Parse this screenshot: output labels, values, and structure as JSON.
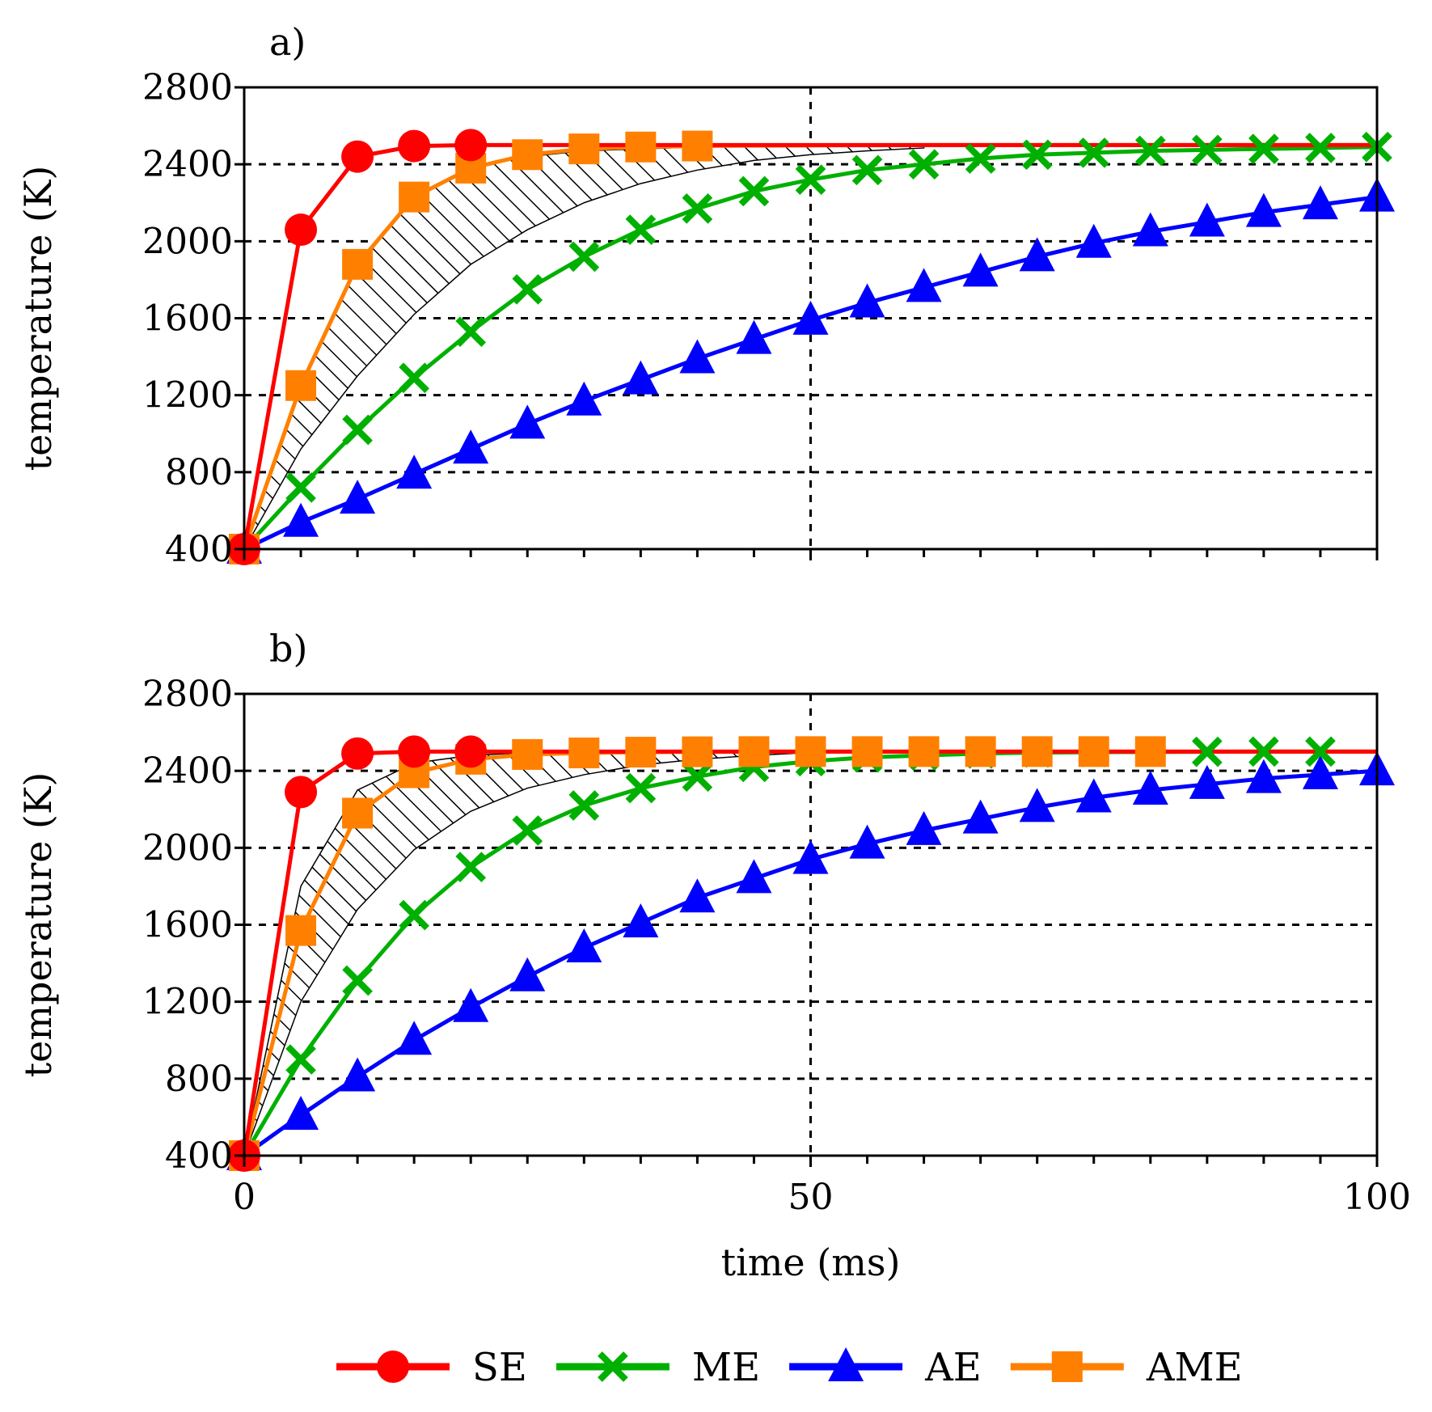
{
  "legend": [
    {
      "name": "SE",
      "color": "#ff0000",
      "marker": "circle"
    },
    {
      "name": "ME",
      "color": "#00b000",
      "marker": "cross"
    },
    {
      "name": "AE",
      "color": "#0000ff",
      "marker": "triangle"
    },
    {
      "name": "AME",
      "color": "#ff8000",
      "marker": "square"
    }
  ],
  "chart_data": [
    {
      "type": "line",
      "panel_label": "a)",
      "xlabel": "",
      "ylabel": "temperature (K)",
      "xlim": [
        0,
        100
      ],
      "ylim": [
        400,
        2800
      ],
      "yticks": [
        400,
        800,
        1200,
        1600,
        2000,
        2400,
        2800
      ],
      "xticks": [
        0,
        50,
        100
      ],
      "grid": "dashed horizontal at y ticks, vertical at x = 50",
      "band": {
        "x": [
          0,
          5,
          10,
          15,
          20,
          25,
          30,
          35,
          40,
          45,
          50,
          55,
          60
        ],
        "upper": [
          400,
          1250,
          1880,
          2230,
          2380,
          2440,
          2470,
          2480,
          2490,
          2492,
          2495,
          2497,
          2499
        ],
        "lower": [
          400,
          920,
          1300,
          1620,
          1880,
          2060,
          2200,
          2300,
          2370,
          2420,
          2450,
          2470,
          2485
        ]
      },
      "series": [
        {
          "name": "SE",
          "x": [
            0,
            5,
            10,
            15,
            20,
            25,
            30,
            35,
            40,
            45,
            50,
            55,
            60,
            65,
            70,
            75,
            80,
            85,
            90,
            95,
            100
          ],
          "y": [
            400,
            2060,
            2440,
            2495,
            2500,
            2500,
            2500,
            2500,
            2500,
            2500,
            2500,
            2500,
            2500,
            2500,
            2500,
            2500,
            2500,
            2500,
            2500,
            2500,
            2500
          ],
          "marker_x": [
            0,
            5,
            10,
            15,
            20
          ]
        },
        {
          "name": "ME",
          "x": [
            0,
            5,
            10,
            15,
            20,
            25,
            30,
            35,
            40,
            45,
            50,
            55,
            60,
            65,
            70,
            75,
            80,
            85,
            90,
            95,
            100
          ],
          "y": [
            400,
            720,
            1020,
            1290,
            1530,
            1750,
            1920,
            2060,
            2170,
            2260,
            2320,
            2370,
            2400,
            2430,
            2450,
            2460,
            2470,
            2475,
            2480,
            2485,
            2490
          ],
          "marker_x": [
            0,
            5,
            10,
            15,
            20,
            25,
            30,
            35,
            40,
            45,
            50,
            55,
            60,
            65,
            70,
            75,
            80,
            85,
            90,
            95,
            100
          ]
        },
        {
          "name": "AE",
          "x": [
            0,
            5,
            10,
            15,
            20,
            25,
            30,
            35,
            40,
            45,
            50,
            55,
            60,
            65,
            70,
            75,
            80,
            85,
            90,
            95,
            100
          ],
          "y": [
            400,
            540,
            660,
            790,
            920,
            1050,
            1170,
            1280,
            1390,
            1490,
            1590,
            1680,
            1760,
            1840,
            1920,
            1990,
            2050,
            2100,
            2150,
            2190,
            2230
          ],
          "marker_x": [
            0,
            5,
            10,
            15,
            20,
            25,
            30,
            35,
            40,
            45,
            50,
            55,
            60,
            65,
            70,
            75,
            80,
            85,
            90,
            95,
            100
          ]
        },
        {
          "name": "AME",
          "x": [
            0,
            5,
            10,
            15,
            20,
            25,
            30,
            35,
            40,
            45,
            50,
            55,
            60,
            65,
            70,
            75,
            80,
            85,
            90,
            95,
            100
          ],
          "y": [
            400,
            1250,
            1880,
            2230,
            2380,
            2450,
            2480,
            2490,
            2495,
            2497,
            2498,
            2499,
            2500,
            2500,
            2500,
            2500,
            2500,
            2500,
            2500,
            2500,
            2500
          ],
          "marker_x": [
            0,
            5,
            10,
            15,
            20,
            25,
            30,
            35,
            40
          ]
        }
      ]
    },
    {
      "type": "line",
      "panel_label": "b)",
      "xlabel": "time (ms)",
      "ylabel": "temperature (K)",
      "xlim": [
        0,
        100
      ],
      "ylim": [
        400,
        2800
      ],
      "yticks": [
        400,
        800,
        1200,
        1600,
        2000,
        2400,
        2800
      ],
      "xticks": [
        0,
        50,
        100
      ],
      "grid": "dashed horizontal at y ticks, vertical at x = 50",
      "band": {
        "x": [
          0,
          5,
          10,
          15,
          20,
          25,
          30,
          35,
          40,
          45,
          50
        ],
        "upper": [
          400,
          1800,
          2300,
          2440,
          2480,
          2495,
          2498,
          2500,
          2500,
          2500,
          2500
        ],
        "lower": [
          400,
          1200,
          1680,
          1990,
          2190,
          2310,
          2380,
          2430,
          2460,
          2480,
          2495
        ]
      },
      "series": [
        {
          "name": "SE",
          "x": [
            0,
            5,
            10,
            15,
            20,
            25,
            30,
            35,
            40,
            45,
            50,
            55,
            60,
            65,
            70,
            75,
            80,
            85,
            90,
            95,
            100
          ],
          "y": [
            400,
            2290,
            2490,
            2500,
            2500,
            2500,
            2500,
            2500,
            2500,
            2500,
            2500,
            2500,
            2500,
            2500,
            2500,
            2500,
            2500,
            2500,
            2500,
            2500,
            2500
          ],
          "marker_x": [
            0,
            5,
            10,
            15,
            20
          ]
        },
        {
          "name": "ME",
          "x": [
            0,
            5,
            10,
            15,
            20,
            25,
            30,
            35,
            40,
            45,
            50,
            55,
            60,
            65,
            70,
            75,
            80,
            85,
            90,
            95,
            100
          ],
          "y": [
            400,
            900,
            1310,
            1650,
            1900,
            2090,
            2220,
            2310,
            2370,
            2420,
            2450,
            2470,
            2480,
            2490,
            2495,
            2497,
            2498,
            2499,
            2500,
            2500,
            2500
          ],
          "marker_x": [
            0,
            5,
            10,
            15,
            20,
            25,
            30,
            35,
            40,
            45,
            50,
            55,
            60,
            65,
            70,
            75,
            80,
            85,
            90,
            95
          ]
        },
        {
          "name": "AE",
          "x": [
            0,
            5,
            10,
            15,
            20,
            25,
            30,
            35,
            40,
            45,
            50,
            55,
            60,
            65,
            70,
            75,
            80,
            85,
            90,
            95,
            100
          ],
          "y": [
            400,
            610,
            810,
            1000,
            1170,
            1330,
            1480,
            1610,
            1740,
            1840,
            1940,
            2020,
            2090,
            2150,
            2210,
            2260,
            2300,
            2330,
            2360,
            2380,
            2400
          ],
          "marker_x": [
            0,
            5,
            10,
            15,
            20,
            25,
            30,
            35,
            40,
            45,
            50,
            55,
            60,
            65,
            70,
            75,
            80,
            85,
            90,
            95,
            100
          ]
        },
        {
          "name": "AME",
          "x": [
            0,
            5,
            10,
            15,
            20,
            25,
            30,
            35,
            40,
            45,
            50,
            55,
            60,
            65,
            70,
            75,
            80,
            85,
            90,
            95,
            100
          ],
          "y": [
            400,
            1570,
            2180,
            2390,
            2460,
            2485,
            2493,
            2497,
            2499,
            2500,
            2500,
            2500,
            2500,
            2500,
            2500,
            2500,
            2500,
            2500,
            2500,
            2500,
            2500
          ],
          "marker_x": [
            0,
            5,
            10,
            15,
            20,
            25,
            30,
            35,
            40,
            45,
            50,
            55,
            60,
            65,
            70,
            75,
            80
          ]
        }
      ]
    }
  ]
}
